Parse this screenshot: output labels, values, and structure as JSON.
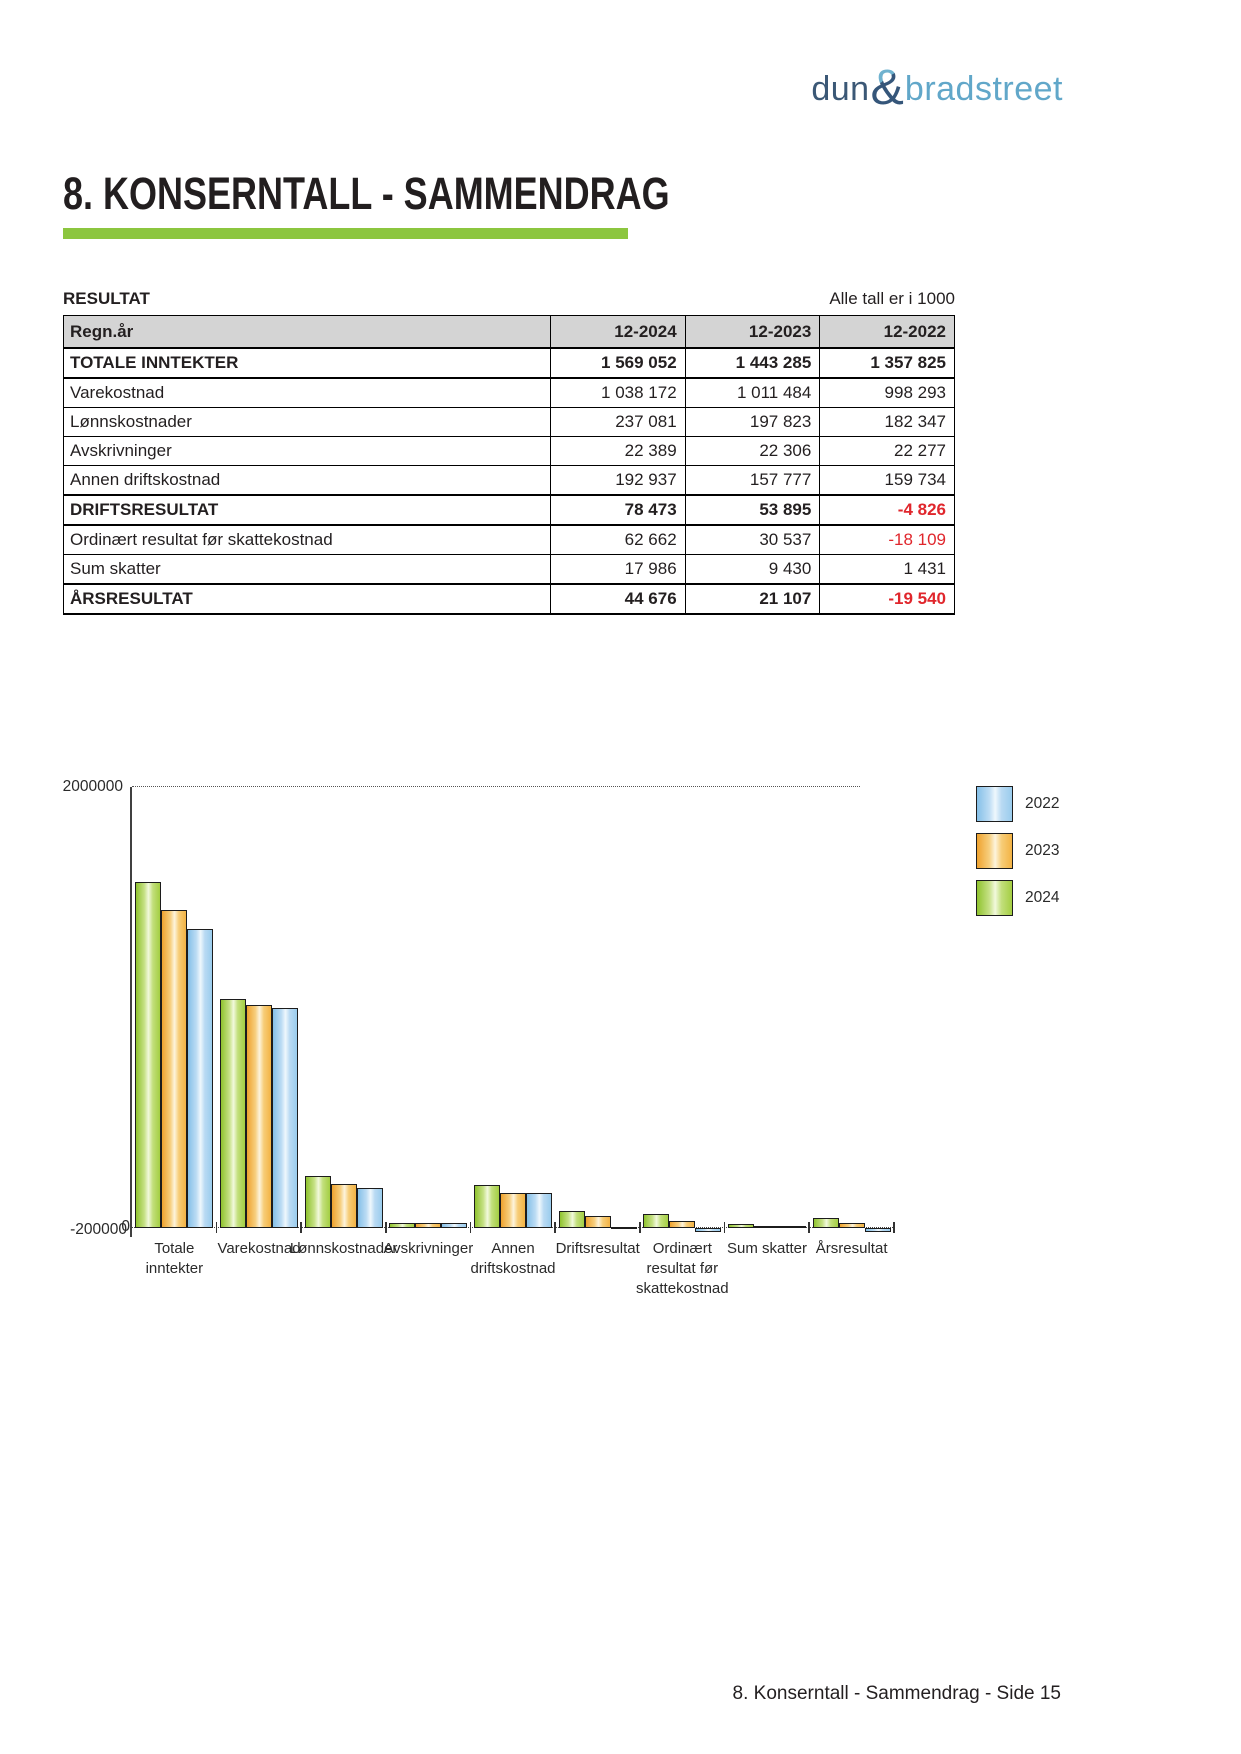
{
  "header": {
    "logo": {
      "part1": "dun",
      "amp": "&",
      "part2": "bradstreet"
    },
    "title": "8. KONSERNTALL - SAMMENDRAG"
  },
  "table": {
    "section_label": "RESULTAT",
    "units_note": "Alle tall er i 1000",
    "columns": [
      "Regn.år",
      "12-2024",
      "12-2023",
      "12-2022"
    ],
    "rows": [
      {
        "label": "TOTALE INNTEKTER",
        "bold": true,
        "values": [
          "1 569 052",
          "1 443 285",
          "1 357 825"
        ]
      },
      {
        "label": "Varekostnad",
        "bold": false,
        "values": [
          "1 038 172",
          "1 011 484",
          "998 293"
        ]
      },
      {
        "label": "Lønnskostnader",
        "bold": false,
        "values": [
          "237 081",
          "197 823",
          "182 347"
        ]
      },
      {
        "label": "Avskrivninger",
        "bold": false,
        "values": [
          "22 389",
          "22 306",
          "22 277"
        ]
      },
      {
        "label": "Annen driftskostnad",
        "bold": false,
        "values": [
          "192 937",
          "157 777",
          "159 734"
        ]
      },
      {
        "label": "DRIFTSRESULTAT",
        "bold": true,
        "values": [
          "78 473",
          "53 895",
          "-4 826"
        ]
      },
      {
        "label": "Ordinært resultat før skattekostnad",
        "bold": false,
        "values": [
          "62 662",
          "30 537",
          "-18 109"
        ]
      },
      {
        "label": "Sum skatter",
        "bold": false,
        "values": [
          "17 986",
          "9 430",
          "1 431"
        ]
      },
      {
        "label": "ÅRSRESULTAT",
        "bold": true,
        "values": [
          "44 676",
          "21 107",
          "-19 540"
        ]
      }
    ]
  },
  "chart_data": {
    "type": "bar",
    "title": "",
    "categories": [
      "Totale\ninntekter",
      "Varekostnad",
      "Lønnskostnader",
      "Avskrivninger",
      "Annen\ndriftskostnad",
      "Driftsresultat",
      "Ordinært\nresultat før\nskattekostnad",
      "Sum skatter",
      "Årsresultat"
    ],
    "series": [
      {
        "name": "2024",
        "color": "#a4ce42",
        "values": [
          1569052,
          1038172,
          237081,
          22389,
          192937,
          78473,
          62662,
          17986,
          44676
        ]
      },
      {
        "name": "2023",
        "color": "#f3b344",
        "values": [
          1443285,
          1011484,
          197823,
          22306,
          157777,
          53895,
          30537,
          9430,
          21107
        ]
      },
      {
        "name": "2022",
        "color": "#9acced",
        "values": [
          1357825,
          998293,
          182347,
          22277,
          159734,
          -4826,
          -18109,
          1431,
          -19540
        ]
      }
    ],
    "legend": [
      "2022",
      "2023",
      "2024"
    ],
    "legend_position": "top-right",
    "ylim": [
      -200000,
      2000000
    ],
    "ytick_labels": [
      "2000000",
      "0",
      "-200000"
    ],
    "grid": "dotted line at 2000000 and at 0 baseline"
  },
  "footer": {
    "text": "8. Konserntall - Sammendrag - Side 15"
  },
  "colors": {
    "accent_green": "#8cc63f",
    "negative_red": "#e0262c",
    "logo_dark_blue": "#3b5876",
    "logo_light_blue": "#61a7c9",
    "table_header_bg": "#d4d4d4",
    "bar_2024": "#a4ce42",
    "bar_2023": "#f3b344",
    "bar_2022": "#9acced"
  }
}
